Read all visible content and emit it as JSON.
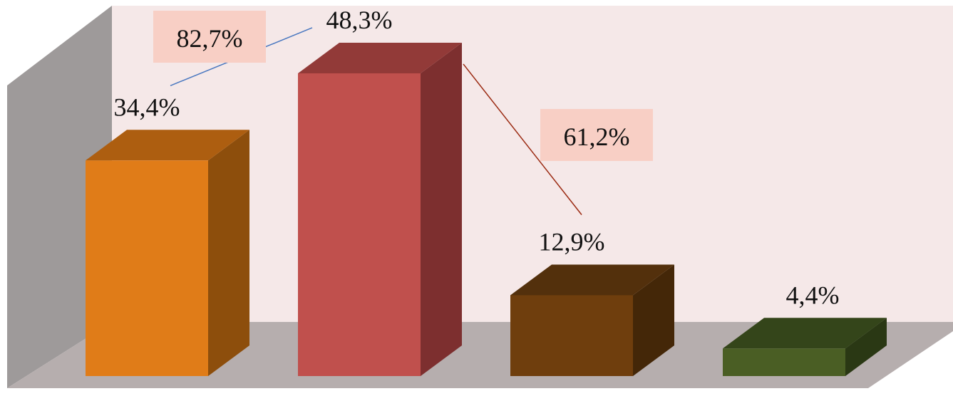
{
  "chart_data": {
    "type": "bar",
    "values": [
      34.4,
      48.3,
      12.9,
      4.4
    ],
    "value_labels": [
      "34,4%",
      "48,3%",
      "12,9%",
      "4,4%"
    ],
    "bar_colors": [
      {
        "front": "#E07C18",
        "top": "#AD5E10",
        "side": "#8D4E0C"
      },
      {
        "front": "#C0504D",
        "top": "#923A38",
        "side": "#7D2F2F"
      },
      {
        "front": "#6F3E0D",
        "top": "#53300C",
        "side": "#442708"
      },
      {
        "front": "#4A5E24",
        "top": "#34451A",
        "side": "#2A3814"
      }
    ],
    "wall_color": "#F5E8E8",
    "side_wall_color": "#9E9A9A",
    "floor_color": "#B6AEAE",
    "annotations": [
      {
        "text": "82,7%",
        "box_color": "#F8CFC5",
        "line_color": "#4A78C0",
        "from_value_label": 0,
        "to_value_label": 1
      },
      {
        "text": "61,2%",
        "box_color": "#F8CFC5",
        "line_color": "#9B2A12",
        "from_bar_top": 1,
        "to_value_label": 2
      }
    ],
    "legend": "none",
    "grid": false
  }
}
